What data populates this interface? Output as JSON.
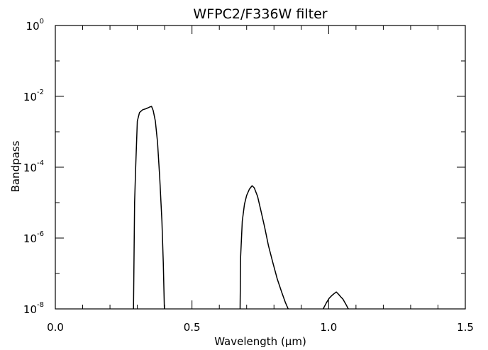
{
  "chart_data": {
    "type": "line",
    "title": "WFPC2/F336W filter",
    "xlabel": "Wavelength (μm)",
    "ylabel": "Bandpass",
    "xlim": [
      0.0,
      1.5
    ],
    "ylim": [
      1e-08,
      1
    ],
    "yscale": "log",
    "grid": false,
    "legend": "none",
    "x_ticks": [
      {
        "value": 0.0,
        "label": "0.0"
      },
      {
        "value": 0.5,
        "label": "0.5"
      },
      {
        "value": 1.0,
        "label": "1.0"
      },
      {
        "value": 1.5,
        "label": "1.5"
      }
    ],
    "y_ticks": [
      {
        "value": 1,
        "base": "10",
        "exp": "0"
      },
      {
        "value": 0.01,
        "base": "10",
        "exp": "-2"
      },
      {
        "value": 0.0001,
        "base": "10",
        "exp": "-4"
      },
      {
        "value": 1e-06,
        "base": "10",
        "exp": "-6"
      },
      {
        "value": 1e-08,
        "base": "10",
        "exp": "-8"
      }
    ],
    "series": [
      {
        "color": "#000000",
        "segments": [
          [
            [
              0.286,
              1e-08
            ],
            [
              0.29,
              1e-05
            ],
            [
              0.294,
              0.0001
            ],
            [
              0.3,
              0.002
            ],
            [
              0.308,
              0.0035
            ],
            [
              0.32,
              0.0042
            ],
            [
              0.333,
              0.0045
            ],
            [
              0.345,
              0.005
            ],
            [
              0.352,
              0.0052
            ],
            [
              0.358,
              0.004
            ],
            [
              0.366,
              0.002
            ],
            [
              0.374,
              0.0005
            ],
            [
              0.382,
              5e-05
            ],
            [
              0.39,
              3e-06
            ],
            [
              0.395,
              2e-07
            ],
            [
              0.399,
              1e-08
            ]
          ],
          [
            [
              0.676,
              1e-08
            ],
            [
              0.678,
              3e-07
            ],
            [
              0.684,
              3e-06
            ],
            [
              0.692,
              9e-06
            ],
            [
              0.7,
              1.6e-05
            ],
            [
              0.71,
              2.4e-05
            ],
            [
              0.72,
              3e-05
            ],
            [
              0.728,
              2.6e-05
            ],
            [
              0.74,
              1.5e-05
            ],
            [
              0.752,
              6e-06
            ],
            [
              0.766,
              2e-06
            ],
            [
              0.78,
              6e-07
            ],
            [
              0.796,
              2e-07
            ],
            [
              0.812,
              7e-08
            ],
            [
              0.828,
              3e-08
            ],
            [
              0.842,
              1.5e-08
            ],
            [
              0.852,
              1e-08
            ]
          ],
          [
            [
              0.98,
              1e-08
            ],
            [
              0.992,
              1.5e-08
            ],
            [
              1.002,
              2e-08
            ],
            [
              1.012,
              2.4e-08
            ],
            [
              1.02,
              2.7e-08
            ],
            [
              1.028,
              3e-08
            ],
            [
              1.036,
              2.6e-08
            ],
            [
              1.044,
              2.2e-08
            ],
            [
              1.052,
              1.9e-08
            ],
            [
              1.062,
              1.4e-08
            ],
            [
              1.072,
              1e-08
            ]
          ]
        ]
      }
    ]
  }
}
